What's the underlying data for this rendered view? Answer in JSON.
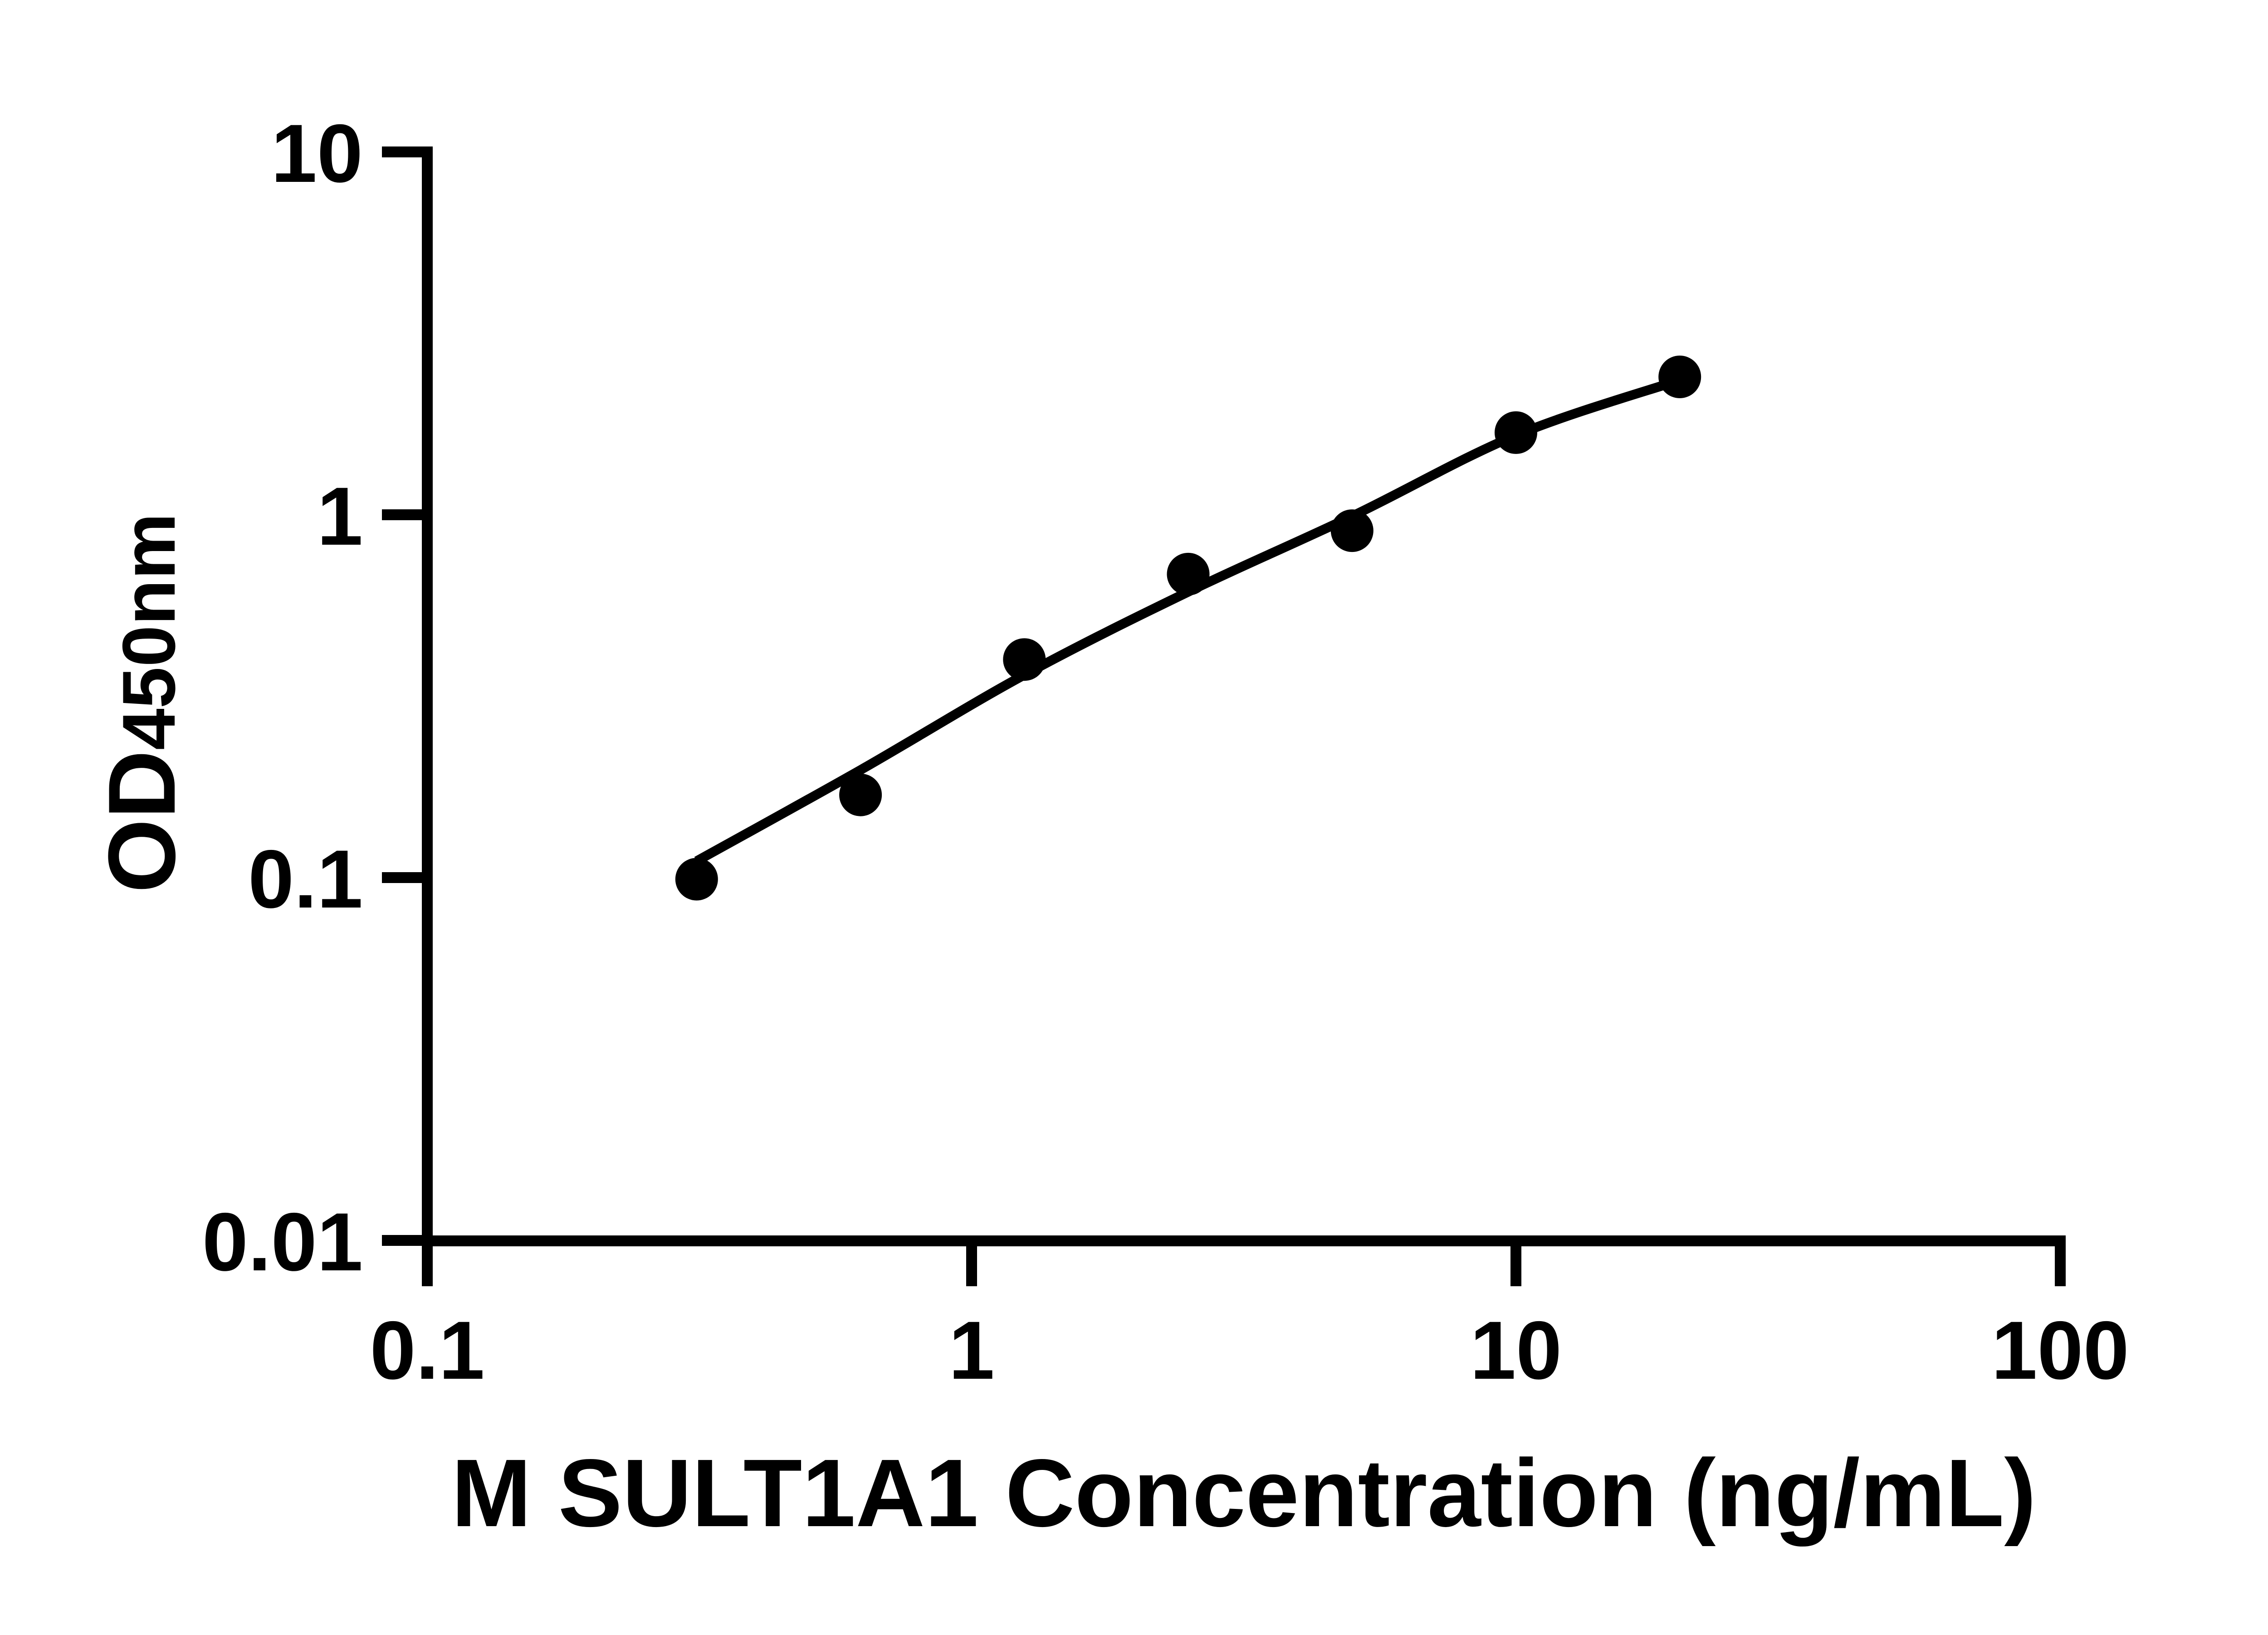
{
  "figure": {
    "background_color": "#ffffff",
    "ink_color": "#000000"
  },
  "chart_data": {
    "type": "scatter",
    "title": "",
    "xlabel": "M SULT1A1 Concentration (ng/mL)",
    "ylabel_main": "OD",
    "ylabel_sub": "450nm",
    "x_scale": "log",
    "y_scale": "log",
    "xlim": [
      0.1,
      100
    ],
    "ylim": [
      0.01,
      10
    ],
    "grid": "off",
    "legend": "none",
    "x_ticks": [
      {
        "value": 0.1,
        "label": "0.1"
      },
      {
        "value": 1,
        "label": "1"
      },
      {
        "value": 10,
        "label": "10"
      },
      {
        "value": 100,
        "label": "100"
      }
    ],
    "y_ticks": [
      {
        "value": 10,
        "label": "10"
      },
      {
        "value": 1,
        "label": "1"
      },
      {
        "value": 0.1,
        "label": "0.1"
      },
      {
        "value": 0.01,
        "label": "0.01"
      }
    ],
    "series": [
      {
        "name": "standard-curve-points",
        "marker": "filled-circle",
        "color": "#000000",
        "points": [
          {
            "conc": 0.3125,
            "od": 0.099
          },
          {
            "conc": 0.625,
            "od": 0.169
          },
          {
            "conc": 1.25,
            "od": 0.399
          },
          {
            "conc": 2.5,
            "od": 0.686
          },
          {
            "conc": 5,
            "od": 0.904
          },
          {
            "conc": 10,
            "od": 1.684
          },
          {
            "conc": 20,
            "od": 2.399
          }
        ]
      }
    ],
    "fit_curve": [
      {
        "conc": 0.3125,
        "od": 0.111
      },
      {
        "conc": 0.625,
        "od": 0.198
      },
      {
        "conc": 1.25,
        "od": 0.362
      },
      {
        "conc": 2.5,
        "od": 0.613
      },
      {
        "conc": 5,
        "od": 0.991
      },
      {
        "conc": 10,
        "od": 1.656
      },
      {
        "conc": 20,
        "od": 2.35
      }
    ]
  }
}
